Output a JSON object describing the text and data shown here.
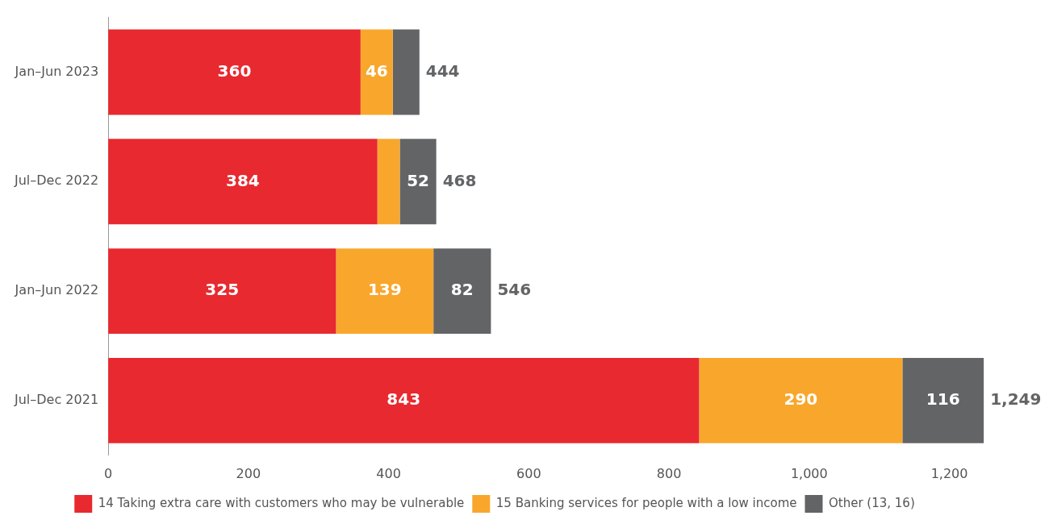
{
  "chart_data": {
    "type": "bar",
    "orientation": "horizontal",
    "stacked": true,
    "categories": [
      "Jan–Jun 2023",
      "Jul–Dec 2022",
      "Jan–Jun 2022",
      "Jul–Dec 2021"
    ],
    "series": [
      {
        "name": "14 Taking extra care with customers who may be vulnerable",
        "color": "#e8292f",
        "values": [
          360,
          384,
          325,
          843
        ],
        "value_labels": [
          "360",
          "384",
          "325",
          "843"
        ]
      },
      {
        "name": "15 Banking services for people with a low income",
        "color": "#f8a72c",
        "values": [
          46,
          32,
          139,
          290
        ],
        "value_labels": [
          "46",
          null,
          "139",
          "290"
        ]
      },
      {
        "name": "Other (13, 16)",
        "color": "#636466",
        "values": [
          38,
          52,
          82,
          116
        ],
        "value_labels": [
          null,
          "52",
          "82",
          "116"
        ]
      }
    ],
    "totals": [
      "444",
      "468",
      "546",
      "1,249"
    ],
    "xlim": [
      0,
      1250
    ],
    "xticks": [
      0,
      200,
      400,
      600,
      800,
      {
        "value": 1000,
        "label": "1,000"
      },
      {
        "value": 1200,
        "label": "1,200"
      }
    ],
    "grid": false,
    "legend": "bottom"
  }
}
